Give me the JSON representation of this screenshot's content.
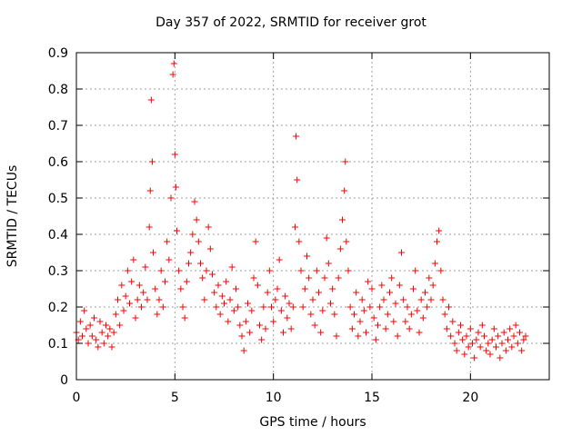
{
  "chart_data": {
    "type": "scatter",
    "title": "Day 357 of 2022, SRMTID for receiver grot",
    "xlabel": "GPS time / hours",
    "ylabel": "SRMTID / TECUs",
    "xlim": [
      0,
      24
    ],
    "ylim": [
      0,
      0.9
    ],
    "xticks": [
      0,
      5,
      10,
      15,
      20
    ],
    "yticks": [
      0,
      0.1,
      0.2,
      0.3,
      0.4,
      0.5,
      0.6,
      0.7,
      0.8,
      0.9
    ],
    "grid": true,
    "marker": "+",
    "series": [
      {
        "name": "SRMTID",
        "color": "#ff0000",
        "x": [
          0.0,
          0.1,
          0.2,
          0.3,
          0.4,
          0.5,
          0.6,
          0.7,
          0.8,
          0.9,
          1.0,
          1.1,
          1.2,
          1.3,
          1.4,
          1.5,
          1.6,
          1.7,
          1.8,
          1.9,
          2.0,
          2.1,
          2.2,
          2.3,
          2.4,
          2.5,
          2.6,
          2.7,
          2.8,
          2.9,
          3.0,
          3.1,
          3.2,
          3.3,
          3.4,
          3.5,
          3.6,
          3.7,
          3.75,
          3.8,
          3.85,
          3.9,
          4.0,
          4.1,
          4.2,
          4.3,
          4.4,
          4.5,
          4.6,
          4.7,
          4.8,
          4.9,
          4.95,
          5.0,
          5.05,
          5.1,
          5.2,
          5.3,
          5.4,
          5.5,
          5.6,
          5.7,
          5.8,
          5.9,
          6.0,
          6.1,
          6.2,
          6.3,
          6.4,
          6.5,
          6.6,
          6.7,
          6.8,
          6.9,
          7.0,
          7.1,
          7.2,
          7.3,
          7.4,
          7.5,
          7.6,
          7.7,
          7.8,
          7.9,
          8.0,
          8.1,
          8.2,
          8.3,
          8.4,
          8.5,
          8.6,
          8.7,
          8.8,
          8.9,
          9.0,
          9.1,
          9.2,
          9.3,
          9.4,
          9.5,
          9.6,
          9.7,
          9.8,
          9.9,
          10.0,
          10.1,
          10.2,
          10.3,
          10.4,
          10.5,
          10.6,
          10.7,
          10.8,
          10.9,
          11.0,
          11.1,
          11.15,
          11.2,
          11.3,
          11.4,
          11.5,
          11.6,
          11.7,
          11.8,
          11.9,
          12.0,
          12.1,
          12.2,
          12.3,
          12.4,
          12.5,
          12.6,
          12.7,
          12.8,
          12.9,
          13.0,
          13.1,
          13.2,
          13.3,
          13.4,
          13.5,
          13.6,
          13.65,
          13.7,
          13.8,
          13.9,
          14.0,
          14.1,
          14.2,
          14.3,
          14.4,
          14.5,
          14.6,
          14.7,
          14.8,
          14.9,
          15.0,
          15.1,
          15.2,
          15.3,
          15.4,
          15.5,
          15.6,
          15.7,
          15.8,
          15.9,
          16.0,
          16.1,
          16.2,
          16.3,
          16.4,
          16.5,
          16.6,
          16.7,
          16.8,
          16.9,
          17.0,
          17.1,
          17.2,
          17.3,
          17.4,
          17.5,
          17.6,
          17.7,
          17.8,
          17.9,
          18.0,
          18.1,
          18.2,
          18.3,
          18.4,
          18.5,
          18.6,
          18.7,
          18.8,
          18.9,
          19.0,
          19.1,
          19.2,
          19.3,
          19.4,
          19.5,
          19.6,
          19.7,
          19.8,
          19.9,
          20.0,
          20.1,
          20.2,
          20.3,
          20.4,
          20.5,
          20.6,
          20.7,
          20.8,
          20.9,
          21.0,
          21.1,
          21.2,
          21.3,
          21.4,
          21.5,
          21.6,
          21.7,
          21.8,
          21.9,
          22.0,
          22.1,
          22.2,
          22.3,
          22.4,
          22.5,
          22.6,
          22.7,
          22.8
        ],
        "y": [
          0.13,
          0.11,
          0.16,
          0.12,
          0.19,
          0.14,
          0.1,
          0.15,
          0.12,
          0.17,
          0.11,
          0.09,
          0.16,
          0.13,
          0.1,
          0.15,
          0.12,
          0.14,
          0.09,
          0.13,
          0.18,
          0.22,
          0.15,
          0.26,
          0.19,
          0.23,
          0.3,
          0.21,
          0.27,
          0.33,
          0.17,
          0.22,
          0.26,
          0.2,
          0.24,
          0.31,
          0.22,
          0.42,
          0.52,
          0.77,
          0.6,
          0.35,
          0.25,
          0.18,
          0.22,
          0.3,
          0.2,
          0.27,
          0.38,
          0.33,
          0.5,
          0.84,
          0.87,
          0.62,
          0.53,
          0.41,
          0.3,
          0.25,
          0.2,
          0.17,
          0.27,
          0.32,
          0.35,
          0.4,
          0.49,
          0.44,
          0.38,
          0.32,
          0.28,
          0.22,
          0.3,
          0.42,
          0.36,
          0.29,
          0.24,
          0.2,
          0.26,
          0.18,
          0.23,
          0.21,
          0.27,
          0.16,
          0.22,
          0.31,
          0.19,
          0.25,
          0.2,
          0.15,
          0.12,
          0.08,
          0.16,
          0.21,
          0.13,
          0.19,
          0.28,
          0.38,
          0.26,
          0.15,
          0.11,
          0.2,
          0.14,
          0.24,
          0.3,
          0.2,
          0.16,
          0.22,
          0.25,
          0.33,
          0.19,
          0.13,
          0.23,
          0.17,
          0.21,
          0.14,
          0.2,
          0.42,
          0.67,
          0.55,
          0.38,
          0.3,
          0.2,
          0.25,
          0.34,
          0.28,
          0.18,
          0.22,
          0.15,
          0.3,
          0.24,
          0.13,
          0.19,
          0.28,
          0.39,
          0.32,
          0.21,
          0.25,
          0.18,
          0.12,
          0.28,
          0.36,
          0.44,
          0.52,
          0.6,
          0.38,
          0.3,
          0.2,
          0.14,
          0.18,
          0.24,
          0.12,
          0.16,
          0.22,
          0.19,
          0.13,
          0.27,
          0.2,
          0.25,
          0.17,
          0.11,
          0.15,
          0.2,
          0.26,
          0.22,
          0.14,
          0.18,
          0.24,
          0.28,
          0.16,
          0.21,
          0.12,
          0.26,
          0.35,
          0.22,
          0.16,
          0.2,
          0.14,
          0.18,
          0.25,
          0.3,
          0.19,
          0.13,
          0.22,
          0.17,
          0.24,
          0.2,
          0.28,
          0.22,
          0.26,
          0.32,
          0.38,
          0.41,
          0.3,
          0.22,
          0.18,
          0.14,
          0.2,
          0.12,
          0.16,
          0.1,
          0.08,
          0.13,
          0.15,
          0.11,
          0.07,
          0.12,
          0.09,
          0.14,
          0.1,
          0.06,
          0.11,
          0.13,
          0.09,
          0.15,
          0.12,
          0.08,
          0.1,
          0.07,
          0.11,
          0.14,
          0.09,
          0.12,
          0.06,
          0.1,
          0.13,
          0.08,
          0.11,
          0.14,
          0.09,
          0.12,
          0.15,
          0.1,
          0.13,
          0.08,
          0.11,
          0.12
        ]
      }
    ]
  }
}
